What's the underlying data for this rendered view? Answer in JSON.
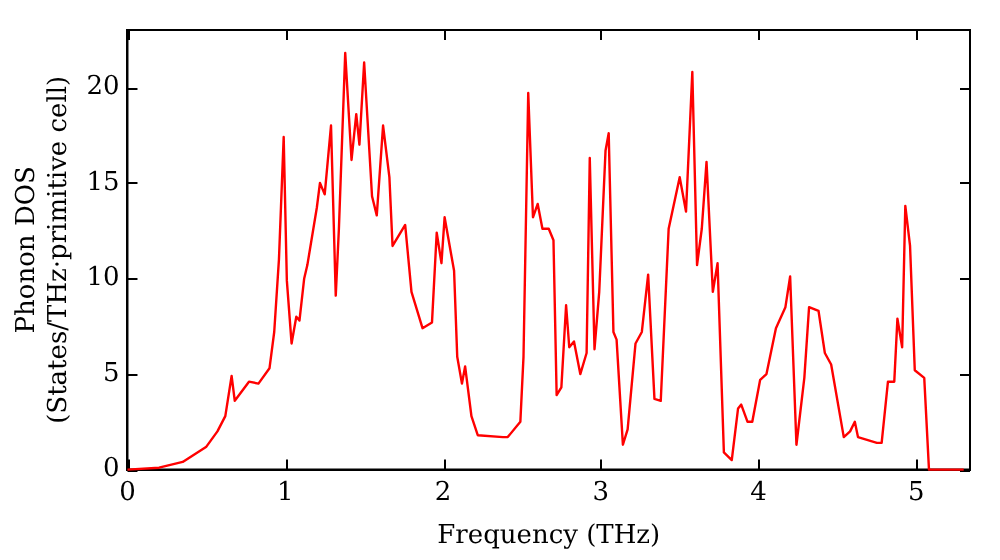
{
  "chart_data": {
    "type": "line",
    "xlabel": "Frequency (THz)",
    "ylabel": "Phonon DOS\n(States/THz·primitive cell)",
    "xlim": [
      0,
      5.34
    ],
    "ylim": [
      0,
      23
    ],
    "xticks": [
      0,
      1,
      2,
      3,
      4,
      5
    ],
    "yticks": [
      0,
      5,
      10,
      15,
      20
    ],
    "grid": false,
    "legend": false,
    "marker": "none",
    "line_style": "solid",
    "series": [
      {
        "color": "#ff0000",
        "x": [
          0,
          0.2,
          0.35,
          0.5,
          0.57,
          0.62,
          0.66,
          0.68,
          0.77,
          0.83,
          0.9,
          0.93,
          0.96,
          0.99,
          1.01,
          1.04,
          1.07,
          1.09,
          1.12,
          1.14,
          1.2,
          1.22,
          1.25,
          1.29,
          1.32,
          1.34,
          1.38,
          1.42,
          1.45,
          1.47,
          1.5,
          1.55,
          1.58,
          1.62,
          1.66,
          1.68,
          1.76,
          1.8,
          1.87,
          1.93,
          1.96,
          1.99,
          2.01,
          2.07,
          2.09,
          2.12,
          2.14,
          2.18,
          2.22,
          2.38,
          2.41,
          2.49,
          2.51,
          2.54,
          2.57,
          2.6,
          2.63,
          2.67,
          2.7,
          2.72,
          2.75,
          2.78,
          2.8,
          2.83,
          2.87,
          2.91,
          2.93,
          2.96,
          2.99,
          3.03,
          3.05,
          3.08,
          3.1,
          3.14,
          3.17,
          3.22,
          3.26,
          3.3,
          3.34,
          3.38,
          3.43,
          3.5,
          3.54,
          3.58,
          3.61,
          3.64,
          3.67,
          3.71,
          3.74,
          3.78,
          3.83,
          3.87,
          3.89,
          3.93,
          3.96,
          4.01,
          4.05,
          4.11,
          4.17,
          4.2,
          4.24,
          4.29,
          4.32,
          4.38,
          4.42,
          4.46,
          4.54,
          4.58,
          4.61,
          4.63,
          4.75,
          4.78,
          4.82,
          4.86,
          4.88,
          4.91,
          4.93,
          4.96,
          4.99,
          5.05,
          5.08,
          5.3
        ],
        "values": [
          0,
          0.1,
          0.4,
          1.2,
          2,
          2.8,
          4.9,
          3.6,
          4.6,
          4.5,
          5.3,
          7.2,
          11,
          17.4,
          9.9,
          6.6,
          8,
          7.8,
          10,
          10.7,
          13.7,
          15,
          14.4,
          18,
          9.1,
          12.6,
          21.8,
          16.2,
          18.6,
          17,
          21.3,
          14.3,
          13.3,
          18,
          15.3,
          11.7,
          12.8,
          9.3,
          7.4,
          7.7,
          12.4,
          10.8,
          13.2,
          10.4,
          5.9,
          4.5,
          5.4,
          2.8,
          1.8,
          1.7,
          1.7,
          2.5,
          5.9,
          19.7,
          13.2,
          13.9,
          12.6,
          12.6,
          12,
          3.9,
          4.3,
          8.6,
          6.4,
          6.7,
          5,
          6.1,
          16.3,
          6.3,
          9.3,
          16.7,
          17.6,
          7.2,
          6.8,
          1.3,
          2.1,
          6.6,
          7.2,
          10.2,
          3.7,
          3.6,
          12.6,
          15.3,
          13.5,
          20.8,
          10.7,
          12.6,
          16.1,
          9.3,
          10.8,
          0.9,
          0.5,
          3.2,
          3.4,
          2.5,
          2.5,
          4.7,
          5,
          7.4,
          8.5,
          10.1,
          1.3,
          4.8,
          8.5,
          8.3,
          6.1,
          5.5,
          1.7,
          2,
          2.5,
          1.7,
          1.4,
          1.4,
          4.6,
          4.6,
          7.9,
          6.4,
          13.8,
          11.7,
          5.2,
          4.8,
          0,
          0
        ]
      }
    ]
  }
}
